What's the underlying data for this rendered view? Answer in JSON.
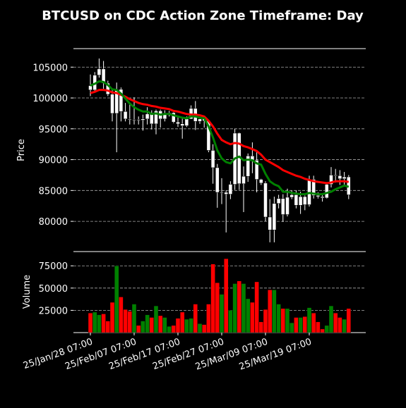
{
  "chart_data": {
    "type": "candlestick",
    "title": "BTCUSD on CDC Action Zone Timeframe: Day",
    "categories": [
      "25/Jan/28 07:00",
      null,
      null,
      null,
      null,
      null,
      null,
      null,
      null,
      null,
      "25/Feb/07 07:00",
      null,
      null,
      null,
      null,
      null,
      null,
      null,
      null,
      null,
      "25/Feb/17 07:00",
      null,
      null,
      null,
      null,
      null,
      null,
      null,
      null,
      null,
      "25/Feb/27 07:00",
      null,
      null,
      null,
      null,
      null,
      null,
      null,
      null,
      null,
      "25/Mar/09 07:00",
      null,
      null,
      null,
      null,
      null,
      null,
      null,
      null,
      null,
      "25/Mar/19 07:00",
      null,
      null,
      null,
      null,
      null,
      null,
      null,
      null,
      null
    ],
    "y_label": "Price",
    "open": [
      102000,
      101300,
      103700,
      104700,
      102400,
      100600,
      97500,
      101400,
      97800,
      96600,
      96500,
      96500,
      96400,
      96600,
      97400,
      95800,
      97900,
      96600,
      97500,
      97600,
      96100,
      95800,
      95500,
      96600,
      98300,
      96200,
      96600,
      96300,
      91500,
      88700,
      84700,
      84700,
      84400,
      86000,
      94300,
      86100,
      87300,
      90600,
      89900,
      86800,
      86200,
      80700,
      78600,
      82900,
      83700,
      81100,
      83900,
      84300,
      82600,
      84000,
      82700,
      86800,
      84200,
      84000,
      83800,
      86000,
      87500,
      87400,
      86900,
      87200
    ],
    "high": [
      103800,
      104200,
      106400,
      106000,
      102800,
      101400,
      102500,
      101700,
      99200,
      99000,
      100100,
      97000,
      97300,
      98500,
      98000,
      98100,
      98100,
      98000,
      97900,
      97700,
      96900,
      96700,
      97000,
      98800,
      99500,
      96900,
      96600,
      96400,
      92500,
      89300,
      87000,
      85000,
      86500,
      95000,
      94400,
      88900,
      91000,
      92800,
      91200,
      86900,
      86500,
      83600,
      84000,
      84300,
      84400,
      85300,
      85000,
      85000,
      84800,
      84200,
      87400,
      87400,
      84700,
      84500,
      86100,
      88800,
      88500,
      88300,
      88000,
      87500
    ],
    "low": [
      100300,
      101100,
      103300,
      101500,
      100300,
      96200,
      91200,
      96200,
      96200,
      95700,
      95700,
      95700,
      94700,
      95700,
      94900,
      94100,
      95200,
      96200,
      97000,
      95900,
      95300,
      93400,
      95300,
      96600,
      94800,
      95800,
      95200,
      91200,
      86100,
      82200,
      82800,
      78200,
      83600,
      85100,
      85100,
      81500,
      86400,
      87800,
      84700,
      85900,
      80000,
      76600,
      76600,
      82100,
      79900,
      80800,
      83600,
      82100,
      81200,
      81800,
      82400,
      83700,
      83700,
      83200,
      83700,
      85500,
      86300,
      85900,
      85800,
      83600
    ],
    "close": [
      101300,
      103700,
      104700,
      102400,
      100600,
      97500,
      101400,
      97800,
      96600,
      96500,
      96500,
      96400,
      96600,
      97400,
      95800,
      97900,
      96600,
      97500,
      97600,
      96100,
      95800,
      95500,
      96600,
      98300,
      96200,
      96600,
      96300,
      91500,
      88700,
      84700,
      84700,
      84400,
      86000,
      94300,
      86100,
      87300,
      90600,
      89900,
      86800,
      86200,
      80700,
      78600,
      82900,
      83700,
      81100,
      83900,
      84300,
      82600,
      84000,
      82700,
      86800,
      84200,
      84000,
      83800,
      86000,
      87500,
      87400,
      86900,
      87200,
      84300
    ],
    "candle_color": "#ffffff",
    "ylim": [
      75100,
      108000
    ],
    "yticks": [
      80000,
      85000,
      90000,
      95000,
      100000,
      105000
    ],
    "grid": true,
    "lines": [
      {
        "color": "#ff0000",
        "values": [
          100800,
          101000,
          101300,
          101300,
          101200,
          100900,
          100800,
          100500,
          100200,
          99800,
          99500,
          99200,
          99000,
          98900,
          98700,
          98600,
          98400,
          98300,
          98200,
          97900,
          97800,
          97600,
          97400,
          97300,
          97300,
          97200,
          97000,
          96300,
          95400,
          94200,
          93200,
          92800,
          92500,
          92700,
          92600,
          92200,
          92000,
          91700,
          91400,
          90800,
          90000,
          89600,
          89200,
          88800,
          88300,
          88000,
          87700,
          87400,
          87200,
          86900,
          86700,
          86500,
          86400,
          86300,
          86200,
          86300,
          86500,
          86500,
          86500,
          86400
        ]
      },
      {
        "color": "#008000",
        "values": [
          102000,
          102300,
          102700,
          102600,
          102100,
          101400,
          101300,
          100700,
          99900,
          99100,
          98500,
          98100,
          97800,
          97800,
          97400,
          97500,
          97300,
          97400,
          97400,
          97200,
          97000,
          96800,
          96700,
          97000,
          97000,
          96800,
          96700,
          95400,
          93600,
          91500,
          90200,
          89600,
          89400,
          90200,
          90500,
          89900,
          90000,
          89900,
          89400,
          89200,
          87700,
          86500,
          86000,
          85700,
          84800,
          84800,
          84600,
          84500,
          84400,
          84400,
          84600,
          84500,
          84400,
          84400,
          84600,
          84800,
          85200,
          85500,
          85800,
          85600
        ]
      }
    ],
    "volume": {
      "y_label": "Volume",
      "values": [
        22000,
        23000,
        20000,
        21000,
        13000,
        34000,
        75000,
        40000,
        26000,
        24000,
        32000,
        8000,
        13000,
        20000,
        17000,
        30000,
        19000,
        17000,
        7000,
        8000,
        16000,
        23000,
        15000,
        16000,
        32000,
        10000,
        9000,
        32000,
        77000,
        56000,
        43000,
        83000,
        25000,
        55000,
        58000,
        55000,
        38000,
        34000,
        57000,
        12000,
        26000,
        48000,
        48000,
        32000,
        27000,
        27000,
        11000,
        17000,
        17000,
        18000,
        28000,
        22000,
        12000,
        4000,
        8000,
        30000,
        22000,
        17000,
        15000,
        27000
      ],
      "up_color": "#008000",
      "down_color": "#ff0000",
      "ylim": [
        0,
        91000
      ],
      "yticks": [
        25000,
        50000,
        75000
      ],
      "grid": true
    }
  }
}
